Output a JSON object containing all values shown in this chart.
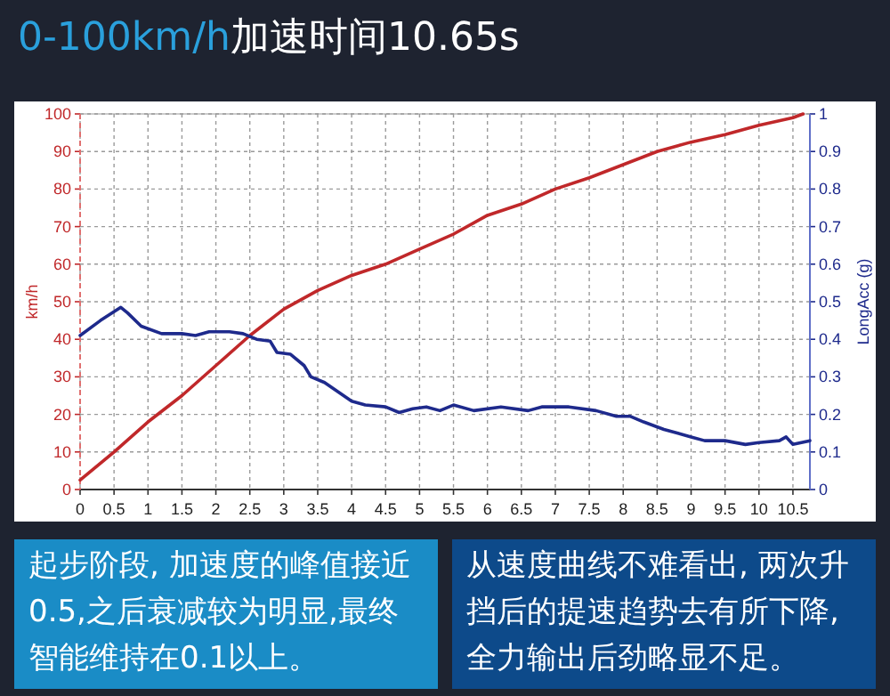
{
  "chart_data": {
    "type": "line",
    "title": "**0-100km/h**加速时间10.65s",
    "ylabel": "km/h",
    "y2label": "LongAcc (g)",
    "annotations": [
      "起步阶段, 加速度的峰值接近0.5,之后衰减较为明显,最终智能维持在0.1以上。",
      "从速度曲线不难看出, 两次升挡后的提速趋势去有所下降, 全力输出后劲略显不足。"
    ],
    "series": [
      {
        "color": "#c0282a",
        "x": [
          0,
          0.5,
          1,
          1.5,
          2,
          2.5,
          3,
          3.5,
          4,
          4.5,
          5,
          5.5,
          6,
          6.5,
          7,
          7.5,
          8,
          8.5,
          9,
          9.5,
          10,
          10.5,
          10.65
        ],
        "values": [
          2.5,
          10,
          18,
          25,
          33,
          41,
          48,
          53,
          57,
          60,
          64,
          68,
          73,
          76,
          80,
          83,
          86.5,
          90,
          92.5,
          94.5,
          97,
          99,
          100
        ]
      },
      {
        "color": "#1e2a8c",
        "axis": "y2",
        "x": [
          0,
          0.3,
          0.6,
          0.7,
          0.9,
          1.2,
          1.5,
          1.7,
          1.9,
          2.2,
          2.4,
          2.6,
          2.8,
          2.9,
          3.1,
          3.3,
          3.4,
          3.6,
          3.8,
          4.0,
          4.2,
          4.5,
          4.7,
          4.9,
          5.1,
          5.3,
          5.5,
          5.8,
          6.2,
          6.6,
          6.8,
          7.2,
          7.6,
          7.9,
          8.1,
          8.3,
          8.6,
          9.0,
          9.2,
          9.5,
          9.8,
          10.0,
          10.3,
          10.4,
          10.5,
          10.75
        ],
        "values": [
          0.41,
          0.45,
          0.485,
          0.47,
          0.435,
          0.415,
          0.415,
          0.41,
          0.42,
          0.42,
          0.415,
          0.4,
          0.395,
          0.365,
          0.36,
          0.33,
          0.3,
          0.285,
          0.26,
          0.235,
          0.225,
          0.22,
          0.205,
          0.215,
          0.22,
          0.21,
          0.225,
          0.21,
          0.22,
          0.21,
          0.22,
          0.22,
          0.21,
          0.195,
          0.195,
          0.18,
          0.16,
          0.14,
          0.13,
          0.13,
          0.12,
          0.125,
          0.13,
          0.14,
          0.12,
          0.13
        ]
      }
    ],
    "xlim": [
      0,
      10.75
    ],
    "xticks": [
      0,
      0.5,
      1,
      1.5,
      2,
      2.5,
      3,
      3.5,
      4,
      4.5,
      5,
      5.5,
      6,
      6.5,
      7,
      7.5,
      8,
      8.5,
      9,
      9.5,
      10,
      10.5
    ],
    "ylim": [
      0,
      100
    ],
    "yticks": [
      0,
      10,
      20,
      30,
      40,
      50,
      60,
      70,
      80,
      90,
      100
    ],
    "y2lim": [
      0,
      1
    ],
    "y2ticks": [
      0,
      0.1,
      0.2,
      0.3,
      0.4,
      0.5,
      0.6,
      0.7,
      0.8,
      0.9,
      1
    ],
    "grid": true,
    "line_style": "solid",
    "marker": "none"
  }
}
